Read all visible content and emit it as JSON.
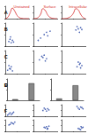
{
  "chart_data": [
    {
      "type": "line",
      "title": "Unstained",
      "annotation": "A",
      "color": "#d62728",
      "tick_labels": false,
      "grid": false,
      "x": [
        0,
        10,
        20,
        30,
        40,
        50,
        60,
        70,
        80,
        90,
        100
      ],
      "values": [
        0,
        10,
        45,
        85,
        60,
        25,
        8,
        2,
        0,
        0,
        0
      ],
      "xlim": [
        0,
        100
      ],
      "ylim": [
        0,
        100
      ],
      "xticks": [
        0,
        50,
        100
      ],
      "yticks": [
        0,
        50,
        100
      ]
    },
    {
      "type": "line",
      "title": "Surface",
      "color": "#d62728",
      "tick_labels": false,
      "grid": false,
      "x": [
        0,
        10,
        20,
        30,
        40,
        50,
        60,
        70,
        80,
        90,
        100
      ],
      "values": [
        0,
        2,
        10,
        35,
        80,
        65,
        30,
        10,
        3,
        0,
        0
      ],
      "xlim": [
        0,
        100
      ],
      "ylim": [
        0,
        100
      ],
      "xticks": [
        0,
        50,
        100
      ],
      "yticks": [
        0,
        50,
        100
      ]
    },
    {
      "type": "line",
      "title": "Intracellular",
      "color": "#d62728",
      "tick_labels": false,
      "grid": false,
      "x": [
        0,
        10,
        20,
        30,
        40,
        50,
        60,
        70,
        80,
        90,
        100
      ],
      "values": [
        0,
        0,
        2,
        8,
        20,
        45,
        80,
        70,
        35,
        10,
        0
      ],
      "xlim": [
        0,
        100
      ],
      "ylim": [
        0,
        100
      ],
      "xticks": [
        0,
        50,
        100
      ],
      "yticks": [
        0,
        50,
        100
      ]
    },
    {
      "type": "scatter",
      "annotation": "B",
      "color": "#1f3fa0",
      "tick_labels": false,
      "grid": false,
      "x": [
        15,
        20,
        25,
        30,
        22,
        35
      ],
      "values": [
        20,
        30,
        15,
        25,
        40,
        18
      ],
      "xlim": [
        0,
        100
      ],
      "ylim": [
        0,
        100
      ],
      "xticks": [
        0,
        50,
        100
      ],
      "yticks": [
        0,
        50,
        100
      ]
    },
    {
      "type": "scatter",
      "color": "#1f3fa0",
      "tick_labels": false,
      "grid": false,
      "x": [
        20,
        30,
        45,
        55,
        60,
        70
      ],
      "values": [
        25,
        35,
        50,
        60,
        45,
        65
      ],
      "xlim": [
        0,
        100
      ],
      "ylim": [
        0,
        100
      ],
      "xticks": [
        0,
        50,
        100
      ],
      "yticks": [
        0,
        50,
        100
      ]
    },
    {
      "type": "scatter",
      "color": "#1f3fa0",
      "tick_labels": false,
      "grid": false,
      "x": [
        60,
        70,
        75,
        80,
        85,
        65
      ],
      "values": [
        70,
        75,
        60,
        80,
        72,
        85
      ],
      "xlim": [
        0,
        100
      ],
      "ylim": [
        0,
        100
      ],
      "xticks": [
        0,
        50,
        100
      ],
      "yticks": [
        0,
        50,
        100
      ]
    },
    {
      "type": "scatter",
      "annotation": "C",
      "color": "#1f3fa0",
      "tick_labels": false,
      "grid": false,
      "x": [
        10,
        18,
        25,
        30,
        15,
        22
      ],
      "values": [
        15,
        22,
        30,
        12,
        35,
        20
      ],
      "xlim": [
        0,
        100
      ],
      "ylim": [
        0,
        100
      ],
      "xticks": [
        0,
        50,
        100
      ],
      "yticks": [
        0,
        50,
        100
      ]
    },
    {
      "type": "scatter",
      "color": "#1f3fa0",
      "tick_labels": false,
      "grid": false,
      "x": [
        25,
        40,
        50,
        35,
        55,
        45
      ],
      "values": [
        60,
        70,
        55,
        75,
        65,
        80
      ],
      "xlim": [
        0,
        100
      ],
      "ylim": [
        0,
        100
      ],
      "xticks": [
        0,
        50,
        100
      ],
      "yticks": [
        0,
        50,
        100
      ]
    },
    {
      "type": "scatter",
      "color": "#1f3fa0",
      "tick_labels": false,
      "grid": false,
      "x": [
        65,
        75,
        80,
        70,
        85,
        78
      ],
      "values": [
        30,
        40,
        25,
        50,
        35,
        45
      ],
      "xlim": [
        0,
        100
      ],
      "ylim": [
        0,
        100
      ],
      "xticks": [
        0,
        50,
        100
      ],
      "yticks": [
        0,
        50,
        100
      ]
    },
    {
      "type": "bar",
      "annotation": "D",
      "color": "#888888",
      "tick_labels": false,
      "grid": false,
      "categories": [
        null,
        null
      ],
      "values": [
        5,
        80
      ],
      "ylim": [
        0,
        100
      ],
      "yticks": [
        0,
        50,
        100
      ]
    },
    {
      "type": "bar",
      "annotation": "E",
      "color": "#888888",
      "tick_labels": false,
      "grid": false,
      "categories": [
        null,
        null
      ],
      "values": [
        8,
        70
      ],
      "ylim": [
        0,
        100
      ],
      "yticks": [
        0,
        50,
        100
      ]
    },
    {
      "type": "scatter",
      "annotation": "F",
      "color": "#1f3fa0",
      "tick_labels": false,
      "grid": false,
      "x": [
        15,
        25,
        20,
        30,
        35,
        10
      ],
      "values": [
        20,
        15,
        30,
        25,
        35,
        10
      ],
      "xlim": [
        0,
        100
      ],
      "ylim": [
        0,
        100
      ],
      "xticks": [
        0,
        50,
        100
      ],
      "yticks": [
        0,
        50,
        100
      ]
    },
    {
      "type": "scatter",
      "color": "#1f3fa0",
      "tick_labels": false,
      "grid": false,
      "x": [
        40,
        50,
        55,
        60,
        45,
        65
      ],
      "values": [
        50,
        60,
        45,
        65,
        70,
        55
      ],
      "xlim": [
        0,
        100
      ],
      "ylim": [
        0,
        100
      ],
      "xticks": [
        0,
        50,
        100
      ],
      "yticks": [
        0,
        50,
        100
      ]
    },
    {
      "type": "scatter",
      "color": "#1f3fa0",
      "tick_labels": false,
      "grid": false,
      "x": [
        70,
        80,
        75,
        85,
        65,
        90
      ],
      "values": [
        70,
        80,
        60,
        75,
        85,
        65
      ],
      "xlim": [
        0,
        100
      ],
      "ylim": [
        0,
        100
      ],
      "xticks": [
        0,
        50,
        100
      ],
      "yticks": [
        0,
        50,
        100
      ]
    },
    {
      "type": "scatter",
      "color": "#1f3fa0",
      "tick_labels": false,
      "grid": false,
      "x": [
        20,
        30,
        25,
        35,
        40,
        15
      ],
      "values": [
        60,
        70,
        75,
        65,
        80,
        55
      ],
      "xlim": [
        0,
        100
      ],
      "ylim": [
        0,
        100
      ],
      "xticks": [
        0,
        50,
        100
      ],
      "yticks": [
        0,
        50,
        100
      ]
    },
    {
      "type": "scatter",
      "color": "#1f3fa0",
      "tick_labels": false,
      "grid": false,
      "x": [
        50,
        55,
        60,
        45,
        65,
        58
      ],
      "values": [
        30,
        40,
        25,
        35,
        45,
        20
      ],
      "xlim": [
        0,
        100
      ],
      "ylim": [
        0,
        100
      ],
      "xticks": [
        0,
        50,
        100
      ],
      "yticks": [
        0,
        50,
        100
      ]
    },
    {
      "type": "scatter",
      "color": "#1f3fa0",
      "tick_labels": false,
      "grid": false,
      "x": [
        75,
        85,
        80,
        70,
        90,
        82
      ],
      "values": [
        20,
        30,
        15,
        25,
        35,
        40
      ],
      "xlim": [
        0,
        100
      ],
      "ylim": [
        0,
        100
      ],
      "xticks": [
        0,
        50,
        100
      ],
      "yticks": [
        0,
        50,
        100
      ]
    }
  ]
}
